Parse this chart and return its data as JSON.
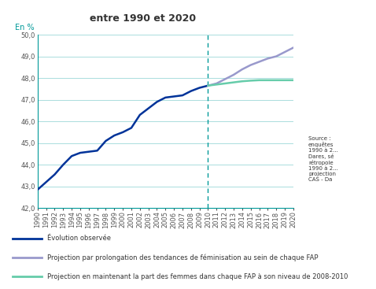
{
  "title": "entre 1990 et 2020",
  "ylabel": "En %",
  "ylim": [
    42.0,
    50.0
  ],
  "yticks": [
    42.0,
    43.0,
    44.0,
    45.0,
    46.0,
    47.0,
    48.0,
    49.0,
    50.0
  ],
  "years_observed": [
    1990,
    1991,
    1992,
    1993,
    1994,
    1995,
    1996,
    1997,
    1998,
    1999,
    2000,
    2001,
    2002,
    2003,
    2004,
    2005,
    2006,
    2007,
    2008,
    2009,
    2010
  ],
  "values_observed": [
    42.85,
    43.2,
    43.55,
    44.0,
    44.4,
    44.55,
    44.6,
    44.65,
    45.1,
    45.35,
    45.5,
    45.7,
    46.3,
    46.6,
    46.9,
    47.1,
    47.15,
    47.2,
    47.4,
    47.55,
    47.65
  ],
  "years_proj1": [
    2010,
    2011,
    2012,
    2013,
    2014,
    2015,
    2016,
    2017,
    2018,
    2019,
    2020
  ],
  "values_proj1": [
    47.65,
    47.75,
    47.95,
    48.15,
    48.4,
    48.6,
    48.75,
    48.9,
    49.0,
    49.2,
    49.4
  ],
  "years_proj2": [
    2010,
    2011,
    2012,
    2013,
    2014,
    2015,
    2016,
    2017,
    2018,
    2019,
    2020
  ],
  "values_proj2": [
    47.65,
    47.7,
    47.75,
    47.8,
    47.85,
    47.88,
    47.9,
    47.9,
    47.9,
    47.9,
    47.9
  ],
  "dashed_line_x": 2010,
  "color_observed": "#003399",
  "color_proj1": "#9999cc",
  "color_proj2": "#66ccaa",
  "dashed_color": "#009999",
  "grid_color": "#aadddd",
  "axis_color": "#009999",
  "background_color": "#ffffff",
  "legend_border_color": "#009999",
  "legend1": "Évolution observée",
  "legend2": "Projection par prolongation des tendances de féminisation au sein de chaque FAP",
  "legend3": "Projection en maintenant la part des femmes dans chaque FAP à son niveau de 2008-2010",
  "title_fontsize": 9,
  "label_fontsize": 7,
  "tick_fontsize": 6,
  "legend_fontsize": 6
}
